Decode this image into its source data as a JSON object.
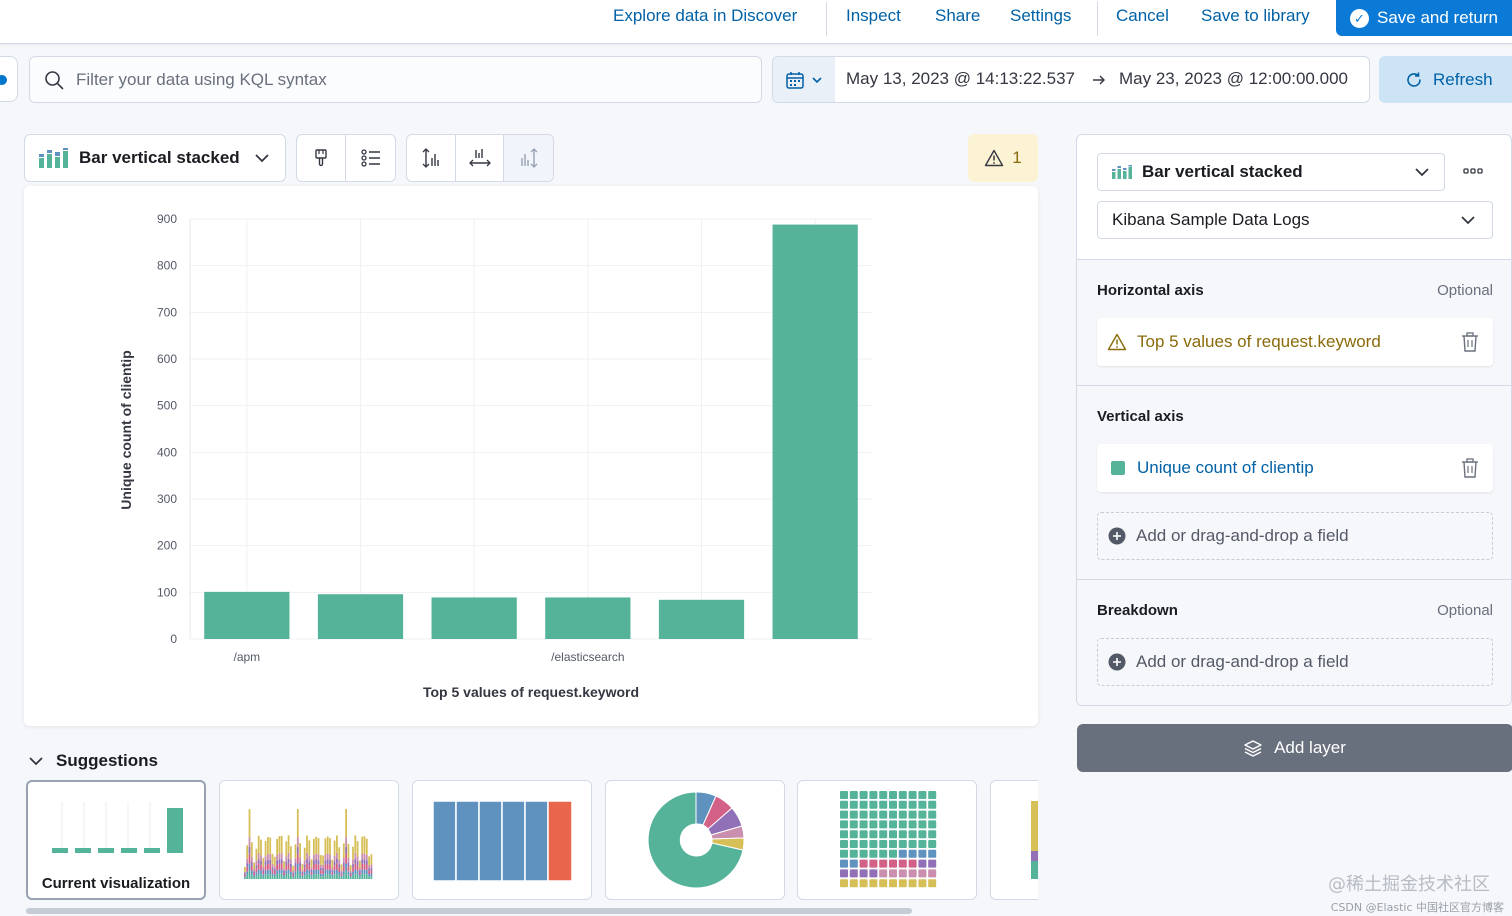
{
  "topnav": {
    "explore": "Explore data in Discover",
    "inspect": "Inspect",
    "share": "Share",
    "settings": "Settings",
    "cancel": "Cancel",
    "save_library": "Save to library",
    "save_return": "Save and return"
  },
  "query": {
    "placeholder": "Filter your data using KQL syntax",
    "start_date": "May 13, 2023 @ 14:13:22.537",
    "end_date": "May 23, 2023 @ 12:00:00.000",
    "refresh": "Refresh"
  },
  "toolbar": {
    "chart_type": "Bar vertical stacked",
    "warning_count": "1"
  },
  "chart_data": {
    "type": "bar",
    "categories": [
      "/apm",
      "",
      "",
      "/elasticsearch",
      "",
      ""
    ],
    "values": [
      101,
      96,
      89,
      89,
      84,
      888
    ],
    "xlabel": "Top 5 values of request.keyword",
    "ylabel": "Unique count of clientip",
    "ylim": [
      0,
      900
    ],
    "yticks": [
      0,
      100,
      200,
      300,
      400,
      500,
      600,
      700,
      800,
      900
    ],
    "bar_color": "#54b399",
    "grid": true
  },
  "suggestions": {
    "title": "Suggestions",
    "current_label": "Current visualization"
  },
  "config": {
    "chart_type": "Bar vertical stacked",
    "data_view": "Kibana Sample Data Logs",
    "horizontal_axis": {
      "title": "Horizontal axis",
      "optional": "Optional",
      "dimension": "Top 5 values of request.keyword"
    },
    "vertical_axis": {
      "title": "Vertical axis",
      "dimension": "Unique count of clientip",
      "add": "Add or drag-and-drop a field"
    },
    "breakdown": {
      "title": "Breakdown",
      "optional": "Optional",
      "add": "Add or drag-and-drop a field"
    },
    "add_layer": "Add layer"
  },
  "watermark": {
    "main": "@稀土掘金技术社区",
    "sub": "CSDN @Elastic 中国社区官方博客"
  }
}
